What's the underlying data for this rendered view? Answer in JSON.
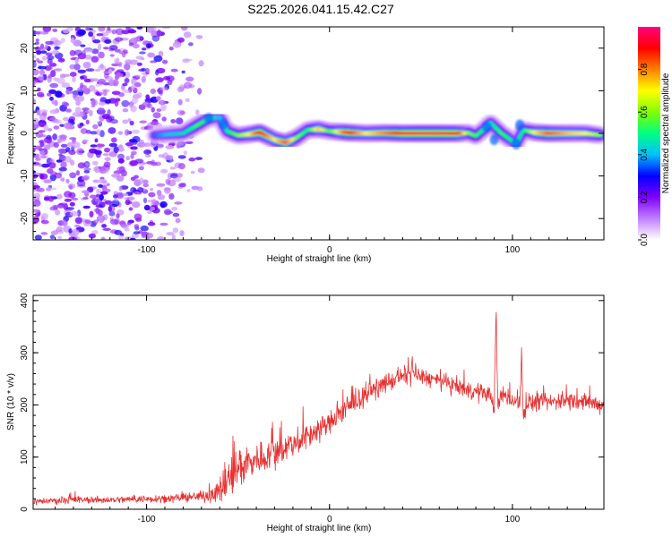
{
  "chart_data": [
    {
      "type": "heatmap",
      "title": "S225.2026.041.15.42.C27",
      "xlabel": "Height of straight line (km)",
      "ylabel": "Frequency (Hz)",
      "xlim": [
        -162,
        150
      ],
      "ylim": [
        -25,
        25
      ],
      "xticks": [
        -100,
        0,
        100
      ],
      "yticks": [
        -20,
        -10,
        0,
        10,
        20
      ],
      "xtick_labels": [
        "-100",
        "0",
        "100"
      ],
      "ytick_labels": [
        "-20",
        "-10",
        "0",
        "10",
        "20"
      ],
      "colorbar": {
        "label": "Normalized spectral amplitude",
        "range": [
          0,
          1
        ],
        "ticks": [
          0.0,
          0.2,
          0.4,
          0.6,
          0.8
        ],
        "tick_labels": [
          "0.0",
          "0.2",
          "0.4",
          "0.6",
          "0.8"
        ],
        "colors": [
          "#ffffff",
          "#c080ff",
          "#8000ff",
          "#0000ff",
          "#00c0ff",
          "#00ff80",
          "#80ff00",
          "#ffff00",
          "#ff8000",
          "#ff0000",
          "#ff0080"
        ]
      },
      "noise_region_x": [
        -162,
        -70
      ],
      "ridge": {
        "x": [
          -96,
          -90,
          -80,
          -72,
          -66,
          -60,
          -56,
          -50,
          -44,
          -38,
          -30,
          -24,
          -18,
          -12,
          -6,
          0,
          10,
          20,
          30,
          40,
          50,
          60,
          70,
          76,
          80,
          84,
          88,
          94,
          98,
          102,
          106,
          112,
          120,
          130,
          140,
          148
        ],
        "y": [
          -0.5,
          -0.3,
          0.0,
          2.0,
          3.5,
          3.8,
          0.5,
          -0.5,
          -0.2,
          0.2,
          -1.5,
          -2.2,
          -1.0,
          0.8,
          1.0,
          0.5,
          0.2,
          0.0,
          0.1,
          0.0,
          0.0,
          0.0,
          0.0,
          0.1,
          -0.6,
          0.8,
          2.5,
          0.0,
          -1.2,
          -2.5,
          0.8,
          0.2,
          0.0,
          0.0,
          0.0,
          -0.4
        ],
        "amplitude": [
          0.35,
          0.4,
          0.45,
          0.55,
          0.5,
          0.4,
          0.5,
          0.6,
          0.7,
          0.9,
          0.7,
          0.85,
          0.6,
          0.5,
          0.75,
          0.55,
          0.9,
          0.7,
          0.8,
          0.9,
          0.95,
          0.95,
          0.9,
          0.6,
          0.55,
          0.5,
          0.45,
          0.55,
          0.5,
          0.45,
          0.5,
          0.7,
          0.85,
          0.75,
          0.7,
          0.6
        ]
      }
    },
    {
      "type": "line",
      "xlabel": "Height of straight line (km)",
      "ylabel": "SNR (10 * v/v)",
      "xlim": [
        -162,
        150
      ],
      "ylim": [
        0,
        410
      ],
      "xticks": [
        -100,
        0,
        100
      ],
      "yticks": [
        0,
        100,
        200,
        300,
        400
      ],
      "xtick_labels": [
        "-100",
        "0",
        "100"
      ],
      "ytick_labels": [
        "0",
        "100",
        "200",
        "300",
        "400"
      ],
      "line_color": "#e83030",
      "series": [
        {
          "name": "SNR",
          "x": [
            -162,
            -140,
            -120,
            -100,
            -80,
            -70,
            -60,
            -55,
            -50,
            -45,
            -40,
            -30,
            -20,
            -10,
            0,
            10,
            20,
            30,
            40,
            45,
            50,
            60,
            70,
            80,
            88,
            90,
            91,
            92,
            94,
            100,
            104,
            105,
            106,
            108,
            120,
            130,
            140,
            150
          ],
          "base": [
            15,
            18,
            18,
            20,
            22,
            25,
            35,
            55,
            80,
            90,
            95,
            110,
            125,
            145,
            165,
            195,
            220,
            240,
            255,
            260,
            255,
            245,
            235,
            225,
            220,
            195,
            370,
            195,
            220,
            210,
            200,
            300,
            170,
            205,
            205,
            210,
            205,
            200
          ],
          "noise": [
            8,
            8,
            8,
            9,
            10,
            12,
            30,
            50,
            55,
            45,
            40,
            35,
            35,
            30,
            28,
            25,
            22,
            22,
            22,
            22,
            20,
            20,
            20,
            20,
            20,
            20,
            20,
            20,
            20,
            20,
            20,
            20,
            20,
            20,
            20,
            20,
            20,
            20
          ]
        }
      ]
    }
  ]
}
